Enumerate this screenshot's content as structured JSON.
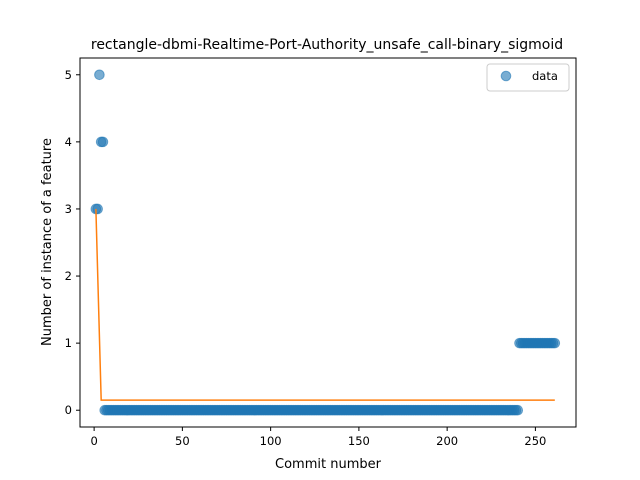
{
  "chart_data": {
    "type": "scatter",
    "title": "rectangle-dbmi-Realtime-Port-Authority_unsafe_call-binary_sigmoid",
    "xlabel": "Commit number",
    "ylabel": "Number of instance of a feature",
    "xlim": [
      -8,
      273
    ],
    "ylim": [
      -0.25,
      5.25
    ],
    "xticks": [
      0,
      50,
      100,
      150,
      200,
      250
    ],
    "yticks": [
      0,
      1,
      2,
      3,
      4,
      5
    ],
    "legend": {
      "placement": "top-right",
      "entries": [
        "data"
      ]
    },
    "grid": false,
    "colors": {
      "points": "#1f77b4",
      "fit": "#ff7f0e"
    },
    "series": [
      {
        "name": "data",
        "kind": "scatter",
        "points": [
          [
            1,
            3
          ],
          [
            2,
            3
          ],
          [
            3,
            5
          ],
          [
            4,
            4
          ],
          [
            5,
            4
          ],
          {
            "range": [
              6,
              240
            ],
            "y": 0
          },
          {
            "range": [
              241,
              261
            ],
            "y": 1
          }
        ]
      },
      {
        "kind": "line",
        "x": [
          1,
          4,
          261
        ],
        "y": [
          3.0,
          0.15,
          0.15
        ]
      }
    ]
  }
}
